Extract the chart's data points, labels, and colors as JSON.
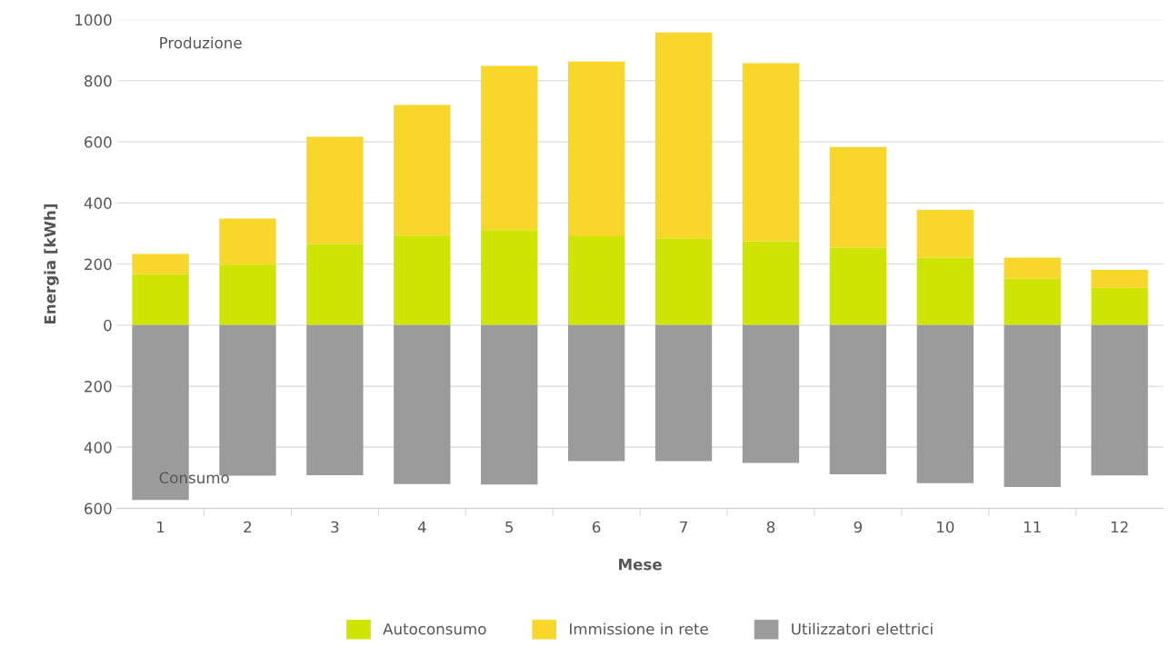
{
  "chart_data": {
    "type": "bar",
    "stacked": true,
    "xlabel": "Mese",
    "ylabel": "Energia [kWh]",
    "categories": [
      "1",
      "2",
      "3",
      "4",
      "5",
      "6",
      "7",
      "8",
      "9",
      "10",
      "11",
      "12"
    ],
    "series": [
      {
        "name": "Autoconsumo",
        "color": "#cde500",
        "values": [
          167,
          198,
          266,
          293,
          311,
          291,
          284,
          275,
          254,
          221,
          152,
          123
        ]
      },
      {
        "name": "Immissione in rete",
        "color": "#f8d62a",
        "values": [
          66,
          151,
          351,
          428,
          538,
          572,
          674,
          583,
          329,
          156,
          69,
          58
        ]
      },
      {
        "name": "Utilizzatori elettrici",
        "color": "#9b9b9b",
        "values": [
          -572,
          -493,
          -491,
          -520,
          -522,
          -445,
          -445,
          -451,
          -488,
          -517,
          -530,
          -492
        ]
      }
    ],
    "ylim": [
      -600,
      1000
    ],
    "yticks": [
      {
        "value": -600,
        "label": "600"
      },
      {
        "value": -400,
        "label": "400"
      },
      {
        "value": -200,
        "label": "200"
      },
      0,
      200,
      400,
      600,
      800,
      1000
    ],
    "grid": "y",
    "legend": "bottom",
    "annotations": [
      "Produzione",
      "Consumo"
    ]
  }
}
